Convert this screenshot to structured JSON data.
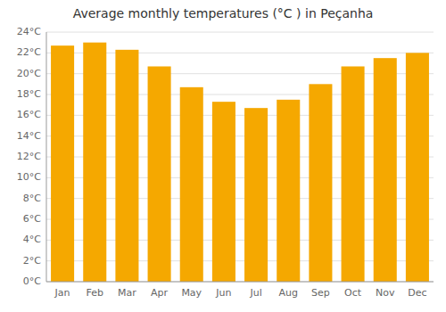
{
  "chart_data": {
    "type": "bar",
    "title": "Average monthly temperatures (°C ) in Peçanha",
    "categories": [
      "Jan",
      "Feb",
      "Mar",
      "Apr",
      "May",
      "Jun",
      "Jul",
      "Aug",
      "Sep",
      "Oct",
      "Nov",
      "Dec"
    ],
    "values": [
      22.7,
      23.0,
      22.3,
      20.7,
      18.7,
      17.3,
      16.7,
      17.5,
      19.0,
      20.7,
      21.5,
      22.0
    ],
    "color": "#F5A800",
    "ylim": [
      0,
      24
    ],
    "yticks": [
      {
        "value": 0,
        "label": "0°C"
      },
      {
        "value": 2,
        "label": "2°C"
      },
      {
        "value": 4,
        "label": "4°C"
      },
      {
        "value": 6,
        "label": "6°C"
      },
      {
        "value": 8,
        "label": "8°C"
      },
      {
        "value": 10,
        "label": "10°C"
      },
      {
        "value": 12,
        "label": "12°C"
      },
      {
        "value": 14,
        "label": "14°C"
      },
      {
        "value": 16,
        "label": "16°C"
      },
      {
        "value": 18,
        "label": "18°C"
      },
      {
        "value": 20,
        "label": "20°C"
      },
      {
        "value": 22,
        "label": "22°C"
      },
      {
        "value": 24,
        "label": "24°C"
      }
    ],
    "grid": true
  }
}
